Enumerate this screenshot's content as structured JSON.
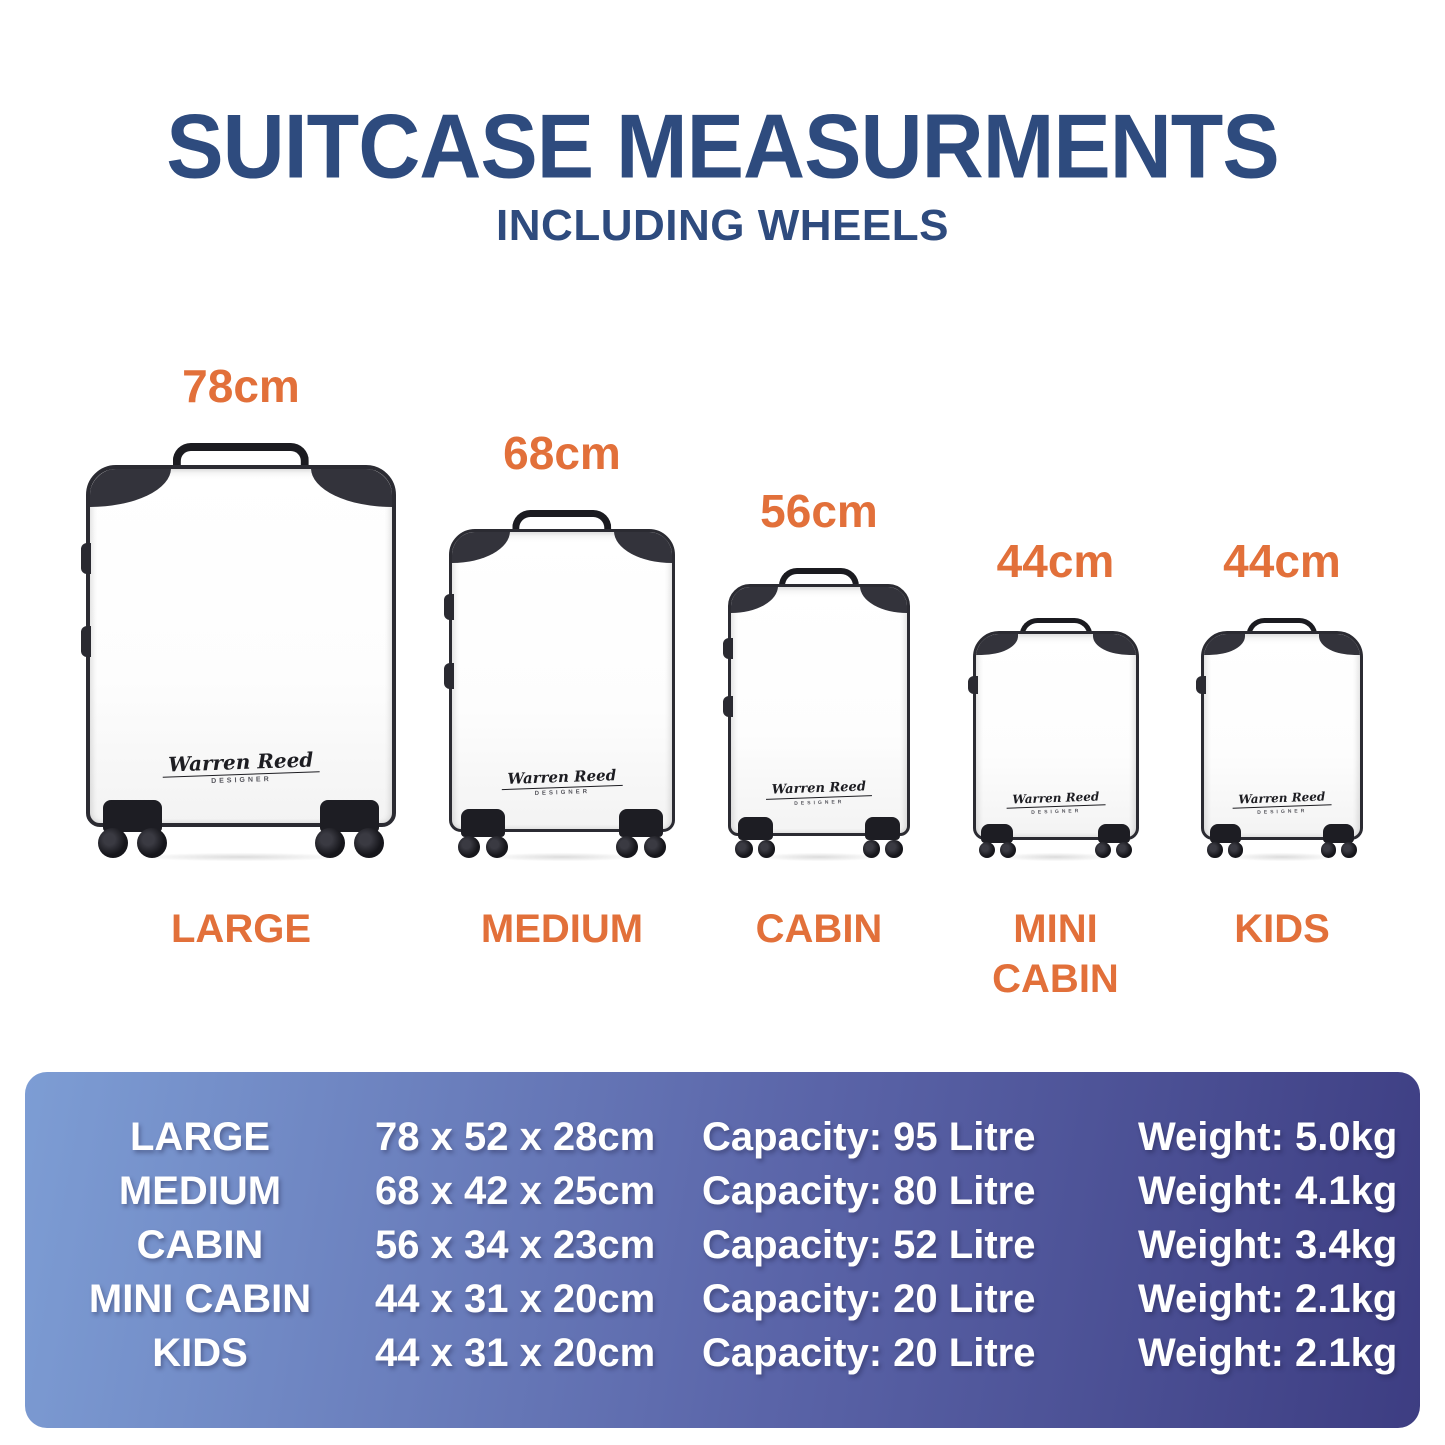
{
  "title": "SUITCASE MEASURMENTS",
  "subtitle": "INCLUDING WHEELS",
  "brand": {
    "signature": "Warren Reed",
    "signature_sub": "DESIGNER"
  },
  "colors": {
    "title_navy": "#2e4b7e",
    "accent_orange": "#e2703a",
    "panel_gradient_left": "#7d9dd4",
    "panel_gradient_right": "#3d3d82",
    "table_text": "#ffffff",
    "suitcase_trim": "#2b2b32"
  },
  "suitcases": [
    {
      "name": "LARGE",
      "height_label": "78cm"
    },
    {
      "name": "MEDIUM",
      "height_label": "68cm"
    },
    {
      "name": "CABIN",
      "height_label": "56cm"
    },
    {
      "name": "MINI CABIN",
      "height_label": "44cm"
    },
    {
      "name": "KIDS",
      "height_label": "44cm"
    }
  ],
  "table": {
    "rows": [
      {
        "name": "LARGE",
        "dimensions": "78 x 52 x 28cm",
        "capacity": "Capacity: 95 Litre",
        "weight": "Weight: 5.0kg"
      },
      {
        "name": "MEDIUM",
        "dimensions": "68 x 42 x 25cm",
        "capacity": "Capacity: 80 Litre",
        "weight": "Weight: 4.1kg"
      },
      {
        "name": "CABIN",
        "dimensions": "56 x 34 x 23cm",
        "capacity": "Capacity: 52 Litre",
        "weight": "Weight: 3.4kg"
      },
      {
        "name": "MINI CABIN",
        "dimensions": "44 x 31 x 20cm",
        "capacity": "Capacity: 20 Litre",
        "weight": "Weight: 2.1kg"
      },
      {
        "name": "KIDS",
        "dimensions": "44 x 31 x 20cm",
        "capacity": "Capacity: 20 Litre",
        "weight": "Weight: 2.1kg"
      }
    ]
  }
}
